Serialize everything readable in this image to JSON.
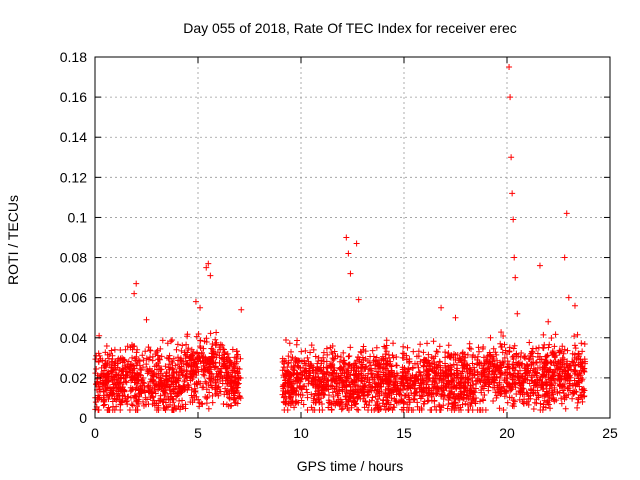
{
  "chart_data": {
    "type": "scatter",
    "title": "Day 055 of 2018, Rate Of TEC Index for receiver erec",
    "xlabel": "GPS time / hours",
    "ylabel": "ROTI / TECUs",
    "xlim": [
      0,
      25
    ],
    "ylim": [
      0,
      0.18
    ],
    "xticks": [
      "0",
      "5",
      "10",
      "15",
      "20",
      "25"
    ],
    "yticks": [
      "0",
      "0.02",
      "0.04",
      "0.06",
      "0.08",
      "0.1",
      "0.12",
      "0.14",
      "0.16",
      "0.18"
    ],
    "grid": true,
    "marker": "+",
    "series": [
      {
        "name": "ROTI",
        "color": "#ff0000",
        "x": [
          0.1,
          0.3,
          0.5,
          0.8,
          1.0,
          1.2,
          1.5,
          1.8,
          2.0,
          2.3,
          2.6,
          2.9,
          3.2,
          3.5,
          3.8,
          4.1,
          4.4,
          4.7,
          5.0,
          5.3,
          5.6,
          5.9,
          6.2,
          6.5,
          6.8,
          7.0,
          9.2,
          9.5,
          9.8,
          10.1,
          10.4,
          10.7,
          11.0,
          11.3,
          11.6,
          11.9,
          12.2,
          12.5,
          12.8,
          13.1,
          13.4,
          13.7,
          14.0,
          14.3,
          14.6,
          14.9,
          15.2,
          15.5,
          15.8,
          16.1,
          16.4,
          16.7,
          17.0,
          17.3,
          17.6,
          17.9,
          18.2,
          18.5,
          18.8,
          19.1,
          19.4,
          19.7,
          20.0,
          20.3,
          20.6,
          20.9,
          21.2,
          21.5,
          21.8,
          22.1,
          22.4,
          22.7,
          23.0,
          23.3,
          23.6,
          0.2,
          1.9,
          2.0,
          2.5,
          4.9,
          5.1,
          5.4,
          5.5,
          5.6,
          7.1,
          12.2,
          12.3,
          12.4,
          12.7,
          12.8,
          16.8,
          17.5,
          19.2,
          20.1,
          20.15,
          20.2,
          20.25,
          20.3,
          20.35,
          20.4,
          20.5,
          21.6,
          22.0,
          22.8,
          22.9,
          23.0,
          23.3
        ],
        "y": [
          0.018,
          0.022,
          0.015,
          0.025,
          0.028,
          0.017,
          0.021,
          0.03,
          0.02,
          0.019,
          0.023,
          0.016,
          0.022,
          0.018,
          0.02,
          0.025,
          0.021,
          0.034,
          0.03,
          0.026,
          0.028,
          0.022,
          0.02,
          0.019,
          0.021,
          0.02,
          0.016,
          0.022,
          0.02,
          0.025,
          0.021,
          0.02,
          0.024,
          0.019,
          0.022,
          0.02,
          0.023,
          0.018,
          0.02,
          0.016,
          0.022,
          0.02,
          0.017,
          0.021,
          0.019,
          0.02,
          0.022,
          0.018,
          0.021,
          0.024,
          0.02,
          0.019,
          0.023,
          0.018,
          0.021,
          0.02,
          0.022,
          0.017,
          0.021,
          0.019,
          0.02,
          0.026,
          0.024,
          0.025,
          0.02,
          0.022,
          0.027,
          0.025,
          0.021,
          0.028,
          0.026,
          0.03,
          0.025,
          0.022,
          0.02,
          0.041,
          0.062,
          0.067,
          0.049,
          0.058,
          0.055,
          0.075,
          0.077,
          0.071,
          0.054,
          0.09,
          0.082,
          0.072,
          0.087,
          0.059,
          0.055,
          0.05,
          0.04,
          0.175,
          0.16,
          0.13,
          0.112,
          0.099,
          0.08,
          0.07,
          0.052,
          0.076,
          0.048,
          0.08,
          0.102,
          0.06,
          0.056
        ]
      }
    ]
  }
}
